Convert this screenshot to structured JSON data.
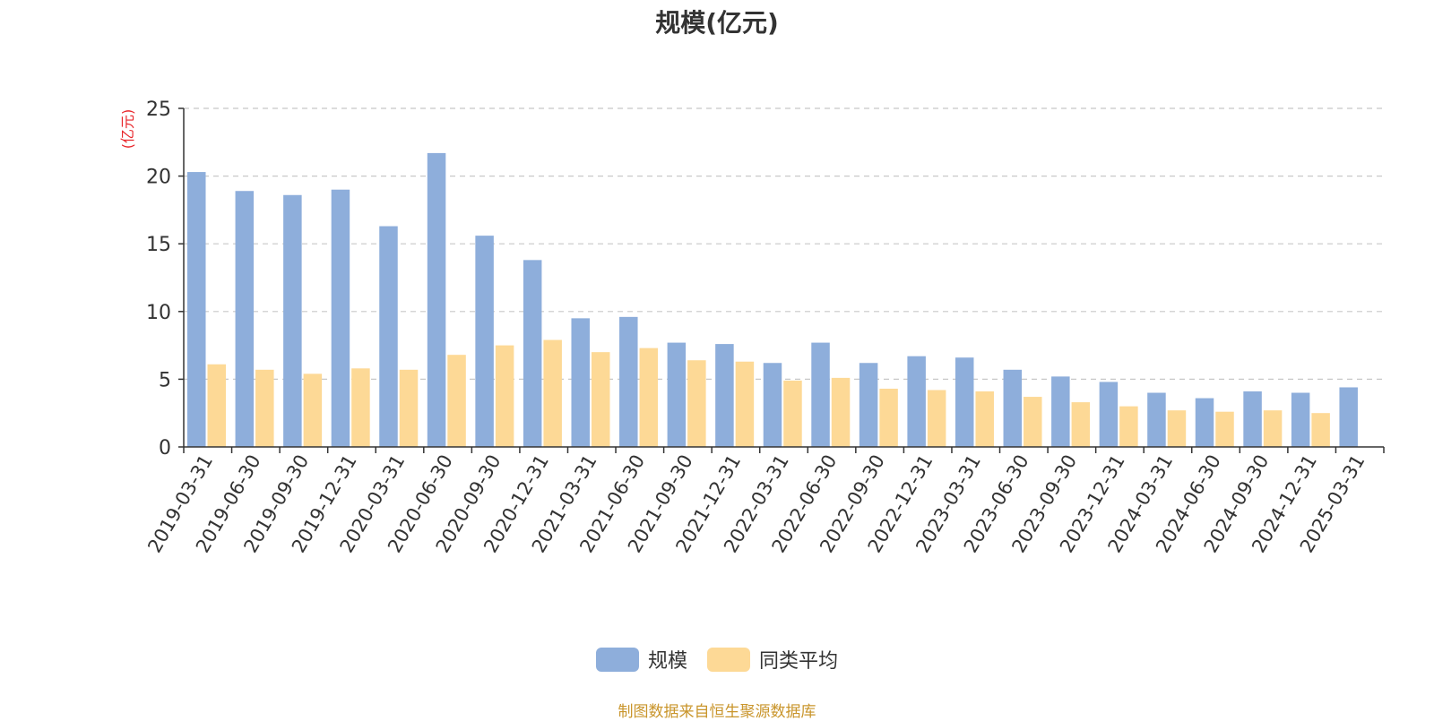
{
  "chart_data": {
    "type": "bar",
    "title": "规模(亿元)",
    "ylabel": "(亿元)",
    "xlabel": "",
    "ylim": [
      0,
      25
    ],
    "yticks": [
      0,
      5,
      10,
      15,
      20,
      25
    ],
    "grid": true,
    "legend_position": "bottom-center",
    "categories": [
      "2019-03-31",
      "2019-06-30",
      "2019-09-30",
      "2019-12-31",
      "2020-03-31",
      "2020-06-30",
      "2020-09-30",
      "2020-12-31",
      "2021-03-31",
      "2021-06-30",
      "2021-09-30",
      "2021-12-31",
      "2022-03-31",
      "2022-06-30",
      "2022-09-30",
      "2022-12-31",
      "2023-03-31",
      "2023-06-30",
      "2023-09-30",
      "2023-12-31",
      "2024-03-31",
      "2024-06-30",
      "2024-09-30",
      "2024-12-31",
      "2025-03-31"
    ],
    "series": [
      {
        "name": "规模",
        "color": "#8eaedb",
        "values": [
          20.3,
          18.9,
          18.6,
          19.0,
          16.3,
          21.7,
          15.6,
          13.8,
          9.5,
          9.6,
          7.7,
          7.6,
          6.2,
          7.7,
          6.2,
          6.7,
          6.6,
          5.7,
          5.2,
          4.8,
          4.0,
          3.6,
          4.1,
          4.0,
          4.4
        ]
      },
      {
        "name": "同类平均",
        "color": "#fdd996",
        "values": [
          6.1,
          5.7,
          5.4,
          5.8,
          5.7,
          6.8,
          7.5,
          7.9,
          7.0,
          7.3,
          6.4,
          6.3,
          4.9,
          5.1,
          4.3,
          4.2,
          4.1,
          3.7,
          3.3,
          3.0,
          2.7,
          2.6,
          2.7,
          2.5,
          null
        ]
      }
    ]
  },
  "source_note": "制图数据来自恒生聚源数据库"
}
